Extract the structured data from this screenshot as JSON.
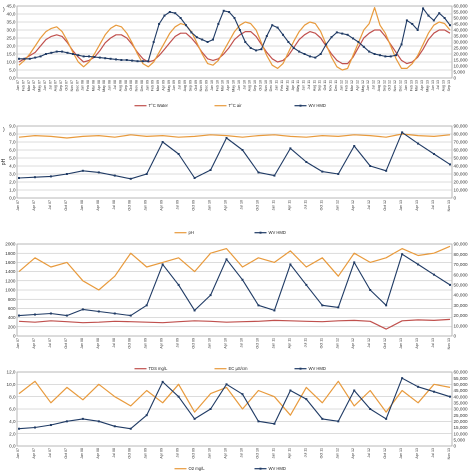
{
  "chart_data": [
    {
      "type": "line",
      "panel_marker": ")",
      "ylabel": "",
      "ylim": [
        0,
        45
      ],
      "y_ticks": [
        "0,0",
        "5,0",
        "10,0",
        "15,0",
        "20,0",
        "25,0",
        "30,0",
        "35,0",
        "40,0",
        "45,0"
      ],
      "y2lim": [
        0,
        60000
      ],
      "y2_ticks": [
        "0",
        "5,000",
        "10,000",
        "15,000",
        "20,000",
        "25,000",
        "30,000",
        "35,000",
        "40,000",
        "45,000",
        "50,000",
        "55,000",
        "60,000"
      ],
      "x_labels": [
        "Jan 07",
        "Feb 07",
        "Mar 07",
        "Apr 07",
        "May 07",
        "Jun 07",
        "Jul 07",
        "Aug 07",
        "Sep 07",
        "Oct 07",
        "Nov 07",
        "Dec 07",
        "Jan 08",
        "Feb 08",
        "Mar 08",
        "Apr 08",
        "May 08",
        "Jun 08",
        "Jul 08",
        "Aug 08",
        "Sep 08",
        "Oct 08",
        "Nov 08",
        "Dec 08",
        "Jan 09",
        "Feb 09",
        "Mar 09",
        "Apr 09",
        "May 09",
        "Jun 09",
        "Jul 09",
        "Aug 09",
        "Sep 09",
        "Oct 09",
        "Nov 09",
        "Dec 09",
        "Jan 10",
        "Feb 10",
        "Mar 10",
        "Apr 10",
        "May 10",
        "Jun 10",
        "Jul 10",
        "Aug 10",
        "Sep 10",
        "Oct 10",
        "Nov 10",
        "Dec 10",
        "Jan 11",
        "Feb 11",
        "Mar 11",
        "Apr 11",
        "May 11",
        "Jun 11",
        "Jul 11",
        "Aug 11",
        "Sep 11",
        "Oct 11",
        "Nov 11",
        "Dec 11",
        "Jan 12",
        "Feb 12",
        "Mar 12",
        "Apr 12",
        "May 12",
        "Jun 12",
        "Jul 12",
        "Aug 12",
        "Sep 12",
        "Oct 12",
        "Nov 12",
        "Dec 12",
        "Jan 13",
        "Feb 13",
        "Mar 13",
        "Apr 13",
        "May 13",
        "Jun 13",
        "Jul 13",
        "Aug 13",
        "Sep 13"
      ],
      "series": [
        {
          "name": "T°C Water",
          "color": "#c0504d",
          "axis": "left",
          "marker": false,
          "values": [
            10,
            12,
            14,
            16,
            20,
            24,
            26,
            27,
            26,
            22,
            17,
            13,
            10,
            11,
            13,
            17,
            22,
            25,
            27,
            27,
            25,
            21,
            16,
            12,
            10,
            11,
            14,
            18,
            22,
            26,
            28,
            28,
            25,
            21,
            16,
            12,
            11,
            12,
            15,
            19,
            24,
            27,
            29,
            29,
            26,
            21,
            16,
            12,
            10,
            11,
            14,
            19,
            24,
            27,
            29,
            28,
            25,
            20,
            15,
            11,
            9,
            9,
            13,
            19,
            25,
            28,
            30,
            30,
            26,
            21,
            16,
            11,
            9,
            10,
            13,
            18,
            24,
            28,
            30,
            30,
            28
          ]
        },
        {
          "name": "T°C air",
          "color": "#e89a3c",
          "axis": "left",
          "marker": false,
          "values": [
            8,
            11,
            15,
            20,
            25,
            29,
            31,
            32,
            29,
            23,
            16,
            10,
            7,
            10,
            15,
            21,
            27,
            31,
            33,
            32,
            28,
            22,
            15,
            9,
            7,
            10,
            16,
            22,
            28,
            32,
            34,
            33,
            29,
            22,
            15,
            9,
            8,
            11,
            17,
            23,
            29,
            33,
            35,
            34,
            30,
            22,
            14,
            8,
            6,
            9,
            16,
            23,
            29,
            33,
            35,
            34,
            29,
            21,
            13,
            7,
            5,
            6,
            14,
            22,
            30,
            34,
            44,
            33,
            28,
            20,
            12,
            6,
            6,
            9,
            14,
            21,
            28,
            33,
            35,
            34,
            30
          ]
        },
        {
          "name": "WV HMD",
          "color": "#1f3a64",
          "axis": "right",
          "marker": true,
          "values": [
            16000,
            16000,
            16000,
            17000,
            18000,
            20000,
            21000,
            22000,
            22000,
            21000,
            20000,
            19000,
            18000,
            18000,
            17500,
            17000,
            16500,
            16000,
            15500,
            15000,
            15000,
            14500,
            14000,
            14000,
            14000,
            30000,
            45000,
            52000,
            55000,
            54000,
            50000,
            44000,
            38000,
            34000,
            32000,
            30000,
            32000,
            45000,
            56000,
            55000,
            50000,
            40000,
            30000,
            25000,
            23000,
            24000,
            35000,
            44000,
            42000,
            36000,
            30000,
            25000,
            22000,
            20000,
            18000,
            17000,
            20000,
            28000,
            34000,
            38000,
            37000,
            36000,
            33000,
            30000,
            26000,
            22000,
            20000,
            19000,
            18000,
            18000,
            19000,
            28000,
            48000,
            45000,
            40000,
            58000,
            52000,
            48000,
            54000,
            50000,
            44000
          ]
        }
      ]
    },
    {
      "type": "line",
      "panel_marker": ")",
      "ylabel": "pH",
      "ylim": [
        0,
        9
      ],
      "y_ticks": [
        "0,0",
        "1,0",
        "2,0",
        "3,0",
        "4,0",
        "5,0",
        "6,0",
        "7,0",
        "8,0",
        "9,0"
      ],
      "y2lim": [
        0,
        90000
      ],
      "y2_ticks": [
        "0",
        "10,000",
        "20,000",
        "30,000",
        "40,000",
        "50,000",
        "60,000",
        "70,000",
        "80,000",
        "90,000"
      ],
      "x_labels": [
        "Jan 07",
        "Apr 07",
        "Jul 07",
        "Oct 07",
        "Jan 08",
        "Apr 08",
        "Jul 08",
        "Oct 08",
        "Jan 09",
        "Apr 09",
        "Jul 09",
        "Oct 09",
        "Jan 10",
        "Apr 10",
        "Jul 10",
        "Oct 10",
        "Jan 11",
        "Apr 11",
        "Jul 11",
        "Oct 11",
        "Jan 12",
        "Apr 12",
        "Jul 12",
        "Oct 12",
        "Jan 13",
        "Apr 13",
        "Jul 13",
        "Nov 13"
      ],
      "series": [
        {
          "name": "pH",
          "color": "#e89a3c",
          "axis": "left",
          "marker": false,
          "values": [
            7.6,
            7.8,
            7.7,
            7.5,
            7.7,
            7.8,
            7.6,
            7.9,
            7.7,
            7.8,
            7.6,
            7.7,
            7.9,
            7.8,
            7.6,
            7.8,
            7.9,
            7.7,
            7.6,
            7.8,
            7.7,
            7.9,
            7.8,
            7.6,
            8.0,
            7.8,
            7.7,
            7.9
          ]
        },
        {
          "name": "WV HMD",
          "color": "#1f3a64",
          "axis": "right",
          "marker": true,
          "values": [
            25000,
            26000,
            27000,
            30000,
            34000,
            32000,
            28000,
            24000,
            30000,
            70000,
            55000,
            25000,
            35000,
            75000,
            60000,
            32000,
            28000,
            62000,
            45000,
            33000,
            30000,
            65000,
            40000,
            34000,
            82000,
            68000,
            55000,
            42000
          ]
        }
      ]
    },
    {
      "type": "line",
      "panel_marker": "",
      "ylabel": "",
      "ylim": [
        0,
        2000
      ],
      "y_ticks": [
        "0",
        "200",
        "400",
        "600",
        "800",
        "1000",
        "1200",
        "1400",
        "1600",
        "1800",
        "2000"
      ],
      "y2lim": [
        0,
        90000
      ],
      "y2_ticks": [
        "0",
        "10,000",
        "20,000",
        "30,000",
        "40,000",
        "50,000",
        "60,000",
        "70,000",
        "80,000",
        "90,000"
      ],
      "x_labels": [
        "Jan 07",
        "Apr 07",
        "Jul 07",
        "Oct 07",
        "Jan 08",
        "Apr 08",
        "Jul 08",
        "Oct 08",
        "Jan 09",
        "Apr 09",
        "Jul 09",
        "Oct 09",
        "Jan 10",
        "Apr 10",
        "Jul 10",
        "Oct 10",
        "Jan 11",
        "Apr 11",
        "Jul 11",
        "Oct 11",
        "Jan 12",
        "Apr 12",
        "Jul 12",
        "Oct 12",
        "Jan 13",
        "Apr 13",
        "Jul 13",
        "Nov 13"
      ],
      "series": [
        {
          "name": "TDS mg/L",
          "color": "#c0504d",
          "axis": "left",
          "marker": false,
          "values": [
            320,
            300,
            330,
            310,
            290,
            300,
            320,
            310,
            300,
            290,
            310,
            330,
            320,
            300,
            310,
            320,
            340,
            330,
            320,
            310,
            330,
            340,
            320,
            150,
            330,
            350,
            340,
            360
          ]
        },
        {
          "name": "EC µS/cm",
          "color": "#e89a3c",
          "axis": "left",
          "marker": false,
          "values": [
            1400,
            1700,
            1500,
            1600,
            1200,
            1000,
            1300,
            1800,
            1500,
            1600,
            1700,
            1400,
            1800,
            1900,
            1500,
            1700,
            1600,
            1850,
            1500,
            1700,
            1300,
            1800,
            1600,
            1700,
            1900,
            1750,
            1800,
            1950
          ]
        },
        {
          "name": "WV HMD",
          "color": "#1f3a64",
          "axis": "right",
          "marker": true,
          "values": [
            20000,
            21000,
            22000,
            20000,
            26000,
            24000,
            22000,
            20000,
            30000,
            70000,
            50000,
            25000,
            40000,
            75000,
            55000,
            30000,
            25000,
            70000,
            50000,
            30000,
            28000,
            72000,
            45000,
            30000,
            80000,
            70000,
            60000,
            50000
          ]
        }
      ]
    },
    {
      "type": "line",
      "panel_marker": "",
      "ylabel": "",
      "ylim": [
        0,
        12
      ],
      "y_ticks": [
        "0,0",
        "2,0",
        "4,0",
        "6,0",
        "8,0",
        "10,0",
        "12,0"
      ],
      "y2lim": [
        0,
        60000
      ],
      "y2_ticks": [
        "0",
        "5,000",
        "10,000",
        "15,000",
        "20,000",
        "25,000",
        "30,000",
        "35,000",
        "40,000",
        "45,000",
        "50,000",
        "55,000",
        "60,000"
      ],
      "x_labels": [
        "Jan 07",
        "Apr 07",
        "Jul 07",
        "Oct 07",
        "Jan 08",
        "Apr 08",
        "Jul 08",
        "Oct 08",
        "Jan 09",
        "Apr 09",
        "Jul 09",
        "Oct 09",
        "Jan 10",
        "Apr 10",
        "Jul 10",
        "Oct 10",
        "Jan 11",
        "Apr 11",
        "Jul 11",
        "Oct 11",
        "Jan 12",
        "Apr 12",
        "Jul 12",
        "Oct 12",
        "Jan 13",
        "Apr 13",
        "Jul 13",
        "Nov 13"
      ],
      "series": [
        {
          "name": "O2 mg/L",
          "color": "#e89a3c",
          "axis": "left",
          "marker": false,
          "values": [
            8.5,
            10.5,
            7.0,
            9.5,
            7.5,
            10.0,
            8.0,
            6.5,
            9.0,
            7.0,
            10.0,
            5.5,
            8.5,
            9.5,
            6.0,
            9.0,
            8.0,
            5.0,
            9.5,
            7.0,
            10.5,
            6.5,
            9.0,
            5.5,
            9.0,
            7.0,
            10.0,
            9.5
          ]
        },
        {
          "name": "WV HMD",
          "color": "#1f3a64",
          "axis": "right",
          "marker": true,
          "values": [
            14000,
            15000,
            17000,
            20000,
            22000,
            20000,
            16000,
            14000,
            25000,
            52000,
            40000,
            22000,
            30000,
            50000,
            42000,
            20000,
            18000,
            45000,
            38000,
            22000,
            20000,
            45000,
            30000,
            22000,
            55000,
            48000,
            44000,
            40000
          ]
        }
      ]
    }
  ]
}
